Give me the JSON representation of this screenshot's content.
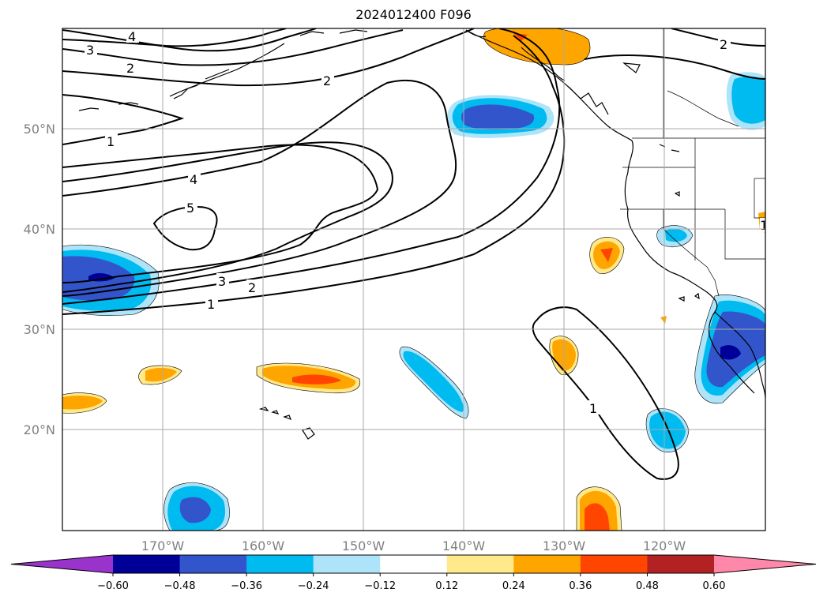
{
  "title": "2024012400 F096",
  "lat_labels": [
    "50°N",
    "40°N",
    "30°N",
    "20°N"
  ],
  "lon_labels": [
    "170°W",
    "160°W",
    "150°W",
    "140°W",
    "130°W",
    "120°W"
  ],
  "colorbar": {
    "ticks": [
      "−0.60",
      "−0.48",
      "−0.36",
      "−0.24",
      "−0.12",
      "0.12",
      "0.24",
      "0.36",
      "0.48",
      "0.60"
    ],
    "colors": [
      "#9933cc",
      "#000099",
      "#3355cc",
      "#00bbf0",
      "#aee4fa",
      "#ffffff",
      "#ffe98a",
      "#ffa500",
      "#ff4500",
      "#b22222",
      "#ff88aa"
    ]
  },
  "contour_labels": [
    "4",
    "3",
    "2",
    "2",
    "1",
    "4",
    "5",
    "3",
    "2",
    "1",
    "1",
    "2",
    "1"
  ]
}
